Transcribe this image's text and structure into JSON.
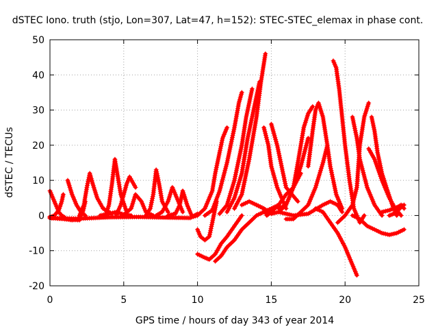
{
  "chart_data": {
    "type": "scatter",
    "title": "dSTEC Iono. truth (stjo, Lon=307, Lat=47, h=152): STEC-STEC_elemax in phase cont.",
    "xlabel": "GPS time / hours of day 343 of year 2014",
    "ylabel": "dSTEC  / TECUs",
    "xlim": [
      0,
      25
    ],
    "ylim": [
      -20,
      50
    ],
    "xticks": [
      "0",
      "5",
      "10",
      "15",
      "20",
      "25"
    ],
    "yticks": [
      "-20",
      "-10",
      "0",
      "10",
      "20",
      "30",
      "40",
      "50"
    ],
    "grid": true,
    "marker": "+",
    "color": "#ff0000",
    "series": [
      {
        "x": [
          0.0,
          0.2,
          0.4,
          0.6,
          0.8,
          1.0
        ],
        "y": [
          7,
          5,
          3,
          1,
          0,
          -0.5
        ]
      },
      {
        "x": [
          0.0,
          0.3,
          0.6,
          0.8,
          0.9
        ],
        "y": [
          -0.5,
          0,
          1.5,
          4,
          6
        ]
      },
      {
        "x": [
          0.0,
          0.5,
          1.0,
          1.5,
          2.0
        ],
        "y": [
          -0.3,
          -0.8,
          -1,
          -1.2,
          -1.3
        ]
      },
      {
        "x": [
          1.2,
          1.5,
          1.8,
          2.1,
          2.4
        ],
        "y": [
          10,
          6,
          3,
          1,
          0
        ]
      },
      {
        "x": [
          1.0,
          1.5,
          1.9,
          2.2,
          2.4
        ],
        "y": [
          -1,
          -1.3,
          -1,
          0.5,
          4
        ]
      },
      {
        "x": [
          2.0,
          2.3,
          2.5,
          2.7,
          2.9,
          3.2,
          3.6,
          4.2
        ],
        "y": [
          0,
          3,
          8,
          12,
          9,
          5,
          2,
          0.5
        ]
      },
      {
        "x": [
          3.8,
          4.0,
          4.2,
          4.4,
          4.8,
          5.2
        ],
        "y": [
          0.5,
          3,
          9,
          16,
          6,
          1
        ]
      },
      {
        "x": [
          3.4,
          4.0,
          4.5,
          5.0,
          5.5
        ],
        "y": [
          0,
          0.5,
          1,
          0.3,
          0
        ]
      },
      {
        "x": [
          4.5,
          4.8,
          5.0,
          5.2,
          5.4,
          5.8
        ],
        "y": [
          0.2,
          3,
          6,
          9,
          11,
          8
        ]
      },
      {
        "x": [
          5.0,
          5.5,
          5.8,
          6.2,
          6.5,
          7.0
        ],
        "y": [
          0.2,
          2,
          6,
          4,
          1,
          0
        ]
      },
      {
        "x": [
          6.5,
          6.8,
          7.0,
          7.2,
          7.4,
          7.6,
          8.0
        ],
        "y": [
          0,
          2,
          6,
          13,
          9,
          4,
          1
        ]
      },
      {
        "x": [
          7.2,
          7.6,
          8.0,
          8.3,
          8.6,
          9.0
        ],
        "y": [
          0,
          1,
          4,
          8,
          5,
          1
        ]
      },
      {
        "x": [
          8.0,
          8.5,
          8.8,
          9.0,
          9.3,
          9.6
        ],
        "y": [
          0,
          0.5,
          3,
          7,
          3,
          0
        ]
      },
      {
        "x": [
          0.0,
          2.0,
          4.0,
          6.0,
          8.0,
          9.5,
          10.0
        ],
        "y": [
          -0.8,
          -0.9,
          -0.5,
          -0.4,
          -0.6,
          -0.7,
          0.5
        ]
      },
      {
        "x": [
          10.0,
          10.2,
          10.5,
          10.8,
          11.0,
          11.3
        ],
        "y": [
          -4,
          -6,
          -7,
          -6,
          -2,
          4
        ]
      },
      {
        "x": [
          10.0,
          10.5,
          10.8,
          11.2,
          11.6,
          12.0,
          12.5,
          13.0
        ],
        "y": [
          -11,
          -12,
          -12.5,
          -11,
          -8,
          -6,
          -3,
          0
        ]
      },
      {
        "x": [
          11.2,
          11.6,
          12.0,
          12.5,
          13.0,
          13.5,
          14.0,
          14.5,
          15.0,
          15.5
        ],
        "y": [
          -13,
          -11.5,
          -9,
          -7,
          -4,
          -2,
          0,
          1,
          2,
          3
        ]
      },
      {
        "x": [
          9.6,
          10.0,
          10.5,
          11.0,
          11.2,
          11.5,
          11.7,
          12.0
        ],
        "y": [
          -0.5,
          0,
          2,
          7,
          12,
          18,
          22,
          25
        ]
      },
      {
        "x": [
          10.5,
          11.0,
          11.5,
          12.0,
          12.5,
          12.8,
          13.0
        ],
        "y": [
          0,
          1.5,
          7,
          15,
          25,
          32,
          35
        ]
      },
      {
        "x": [
          11.5,
          12.0,
          12.5,
          13.0,
          13.3,
          13.7
        ],
        "y": [
          0.5,
          3,
          10,
          20,
          28,
          36
        ]
      },
      {
        "x": [
          12.0,
          12.5,
          13.0,
          13.4,
          13.8,
          14.2
        ],
        "y": [
          1,
          5,
          12,
          22,
          30,
          38
        ]
      },
      {
        "x": [
          12.5,
          13.0,
          13.5,
          14.0,
          14.3,
          14.6
        ],
        "y": [
          2,
          6,
          16,
          28,
          38,
          46
        ]
      },
      {
        "x": [
          13.0,
          13.5,
          14.0,
          14.5,
          14.7,
          15.0,
          15.5,
          16.0,
          16.5,
          17.0
        ],
        "y": [
          3,
          4,
          3,
          2,
          0,
          1,
          3,
          6,
          8,
          12
        ]
      },
      {
        "x": [
          14.5,
          14.8,
          15.0,
          15.4,
          15.8,
          16.0
        ],
        "y": [
          25,
          20,
          14,
          8,
          4,
          2
        ]
      },
      {
        "x": [
          15.0,
          15.4,
          15.8,
          16.0,
          16.4,
          16.8
        ],
        "y": [
          26,
          20,
          12,
          8,
          6,
          4
        ]
      },
      {
        "x": [
          14.0,
          14.5,
          15.0,
          15.5,
          16.0,
          16.5,
          17.0,
          17.5
        ],
        "y": [
          3,
          2,
          0.5,
          1,
          3,
          8,
          14,
          22
        ]
      },
      {
        "x": [
          15.5,
          16.0,
          16.5,
          16.8,
          17.0,
          17.2,
          17.5,
          17.8
        ],
        "y": [
          2,
          3,
          8,
          15,
          20,
          25,
          29,
          31
        ]
      },
      {
        "x": [
          16.0,
          16.5,
          17.0,
          17.5,
          18.0,
          18.5,
          18.8
        ],
        "y": [
          -1,
          -1,
          1,
          3,
          8,
          15,
          20
        ]
      },
      {
        "x": [
          17.5,
          17.8,
          18.0,
          18.2,
          18.5,
          18.8,
          19.0,
          19.4,
          19.8
        ],
        "y": [
          14,
          24,
          30,
          32,
          28,
          20,
          14,
          6,
          2
        ]
      },
      {
        "x": [
          15.5,
          16.5,
          17.5,
          18.5,
          19.0,
          19.5,
          19.8
        ],
        "y": [
          1,
          0,
          0.5,
          3,
          4,
          3,
          1
        ]
      },
      {
        "x": [
          18.0,
          18.5,
          19.0,
          19.5,
          20.0,
          20.4,
          20.8
        ],
        "y": [
          2,
          1,
          -2,
          -5,
          -9,
          -13,
          -17
        ]
      },
      {
        "x": [
          19.2,
          19.4,
          19.6,
          19.8,
          20.0,
          20.3,
          20.6,
          21.0,
          21.3
        ],
        "y": [
          44,
          42,
          36,
          28,
          20,
          10,
          2,
          -2,
          0
        ]
      },
      {
        "x": [
          19.5,
          20.0,
          20.5,
          20.8,
          21.0,
          21.3,
          21.6
        ],
        "y": [
          -2,
          0,
          3,
          8,
          20,
          28,
          32
        ]
      },
      {
        "x": [
          20.5,
          20.8,
          21.0,
          21.5,
          22.0,
          22.5
        ],
        "y": [
          28,
          22,
          16,
          8,
          3,
          0
        ]
      },
      {
        "x": [
          21.8,
          22.0,
          22.2,
          22.5,
          22.8,
          23.2,
          23.5
        ],
        "y": [
          28,
          24,
          18,
          12,
          8,
          3,
          0
        ]
      },
      {
        "x": [
          21.6,
          22.0,
          22.5,
          23.0,
          23.4,
          23.8
        ],
        "y": [
          19,
          16,
          10,
          5,
          2,
          0
        ]
      },
      {
        "x": [
          20.5,
          21.0,
          21.5,
          22.0,
          22.5,
          23.0,
          23.5,
          24.0
        ],
        "y": [
          0,
          -1,
          -3,
          -4,
          -5,
          -5.5,
          -5,
          -4
        ]
      },
      {
        "x": [
          22.5,
          23.0,
          23.3,
          23.6,
          23.8,
          24.0
        ],
        "y": [
          1,
          1.5,
          2,
          2.5,
          3,
          2
        ]
      },
      {
        "x": [
          23.0,
          23.3,
          23.6,
          23.9,
          24.0
        ],
        "y": [
          0,
          0.5,
          1.5,
          2.8,
          3
        ]
      }
    ]
  }
}
